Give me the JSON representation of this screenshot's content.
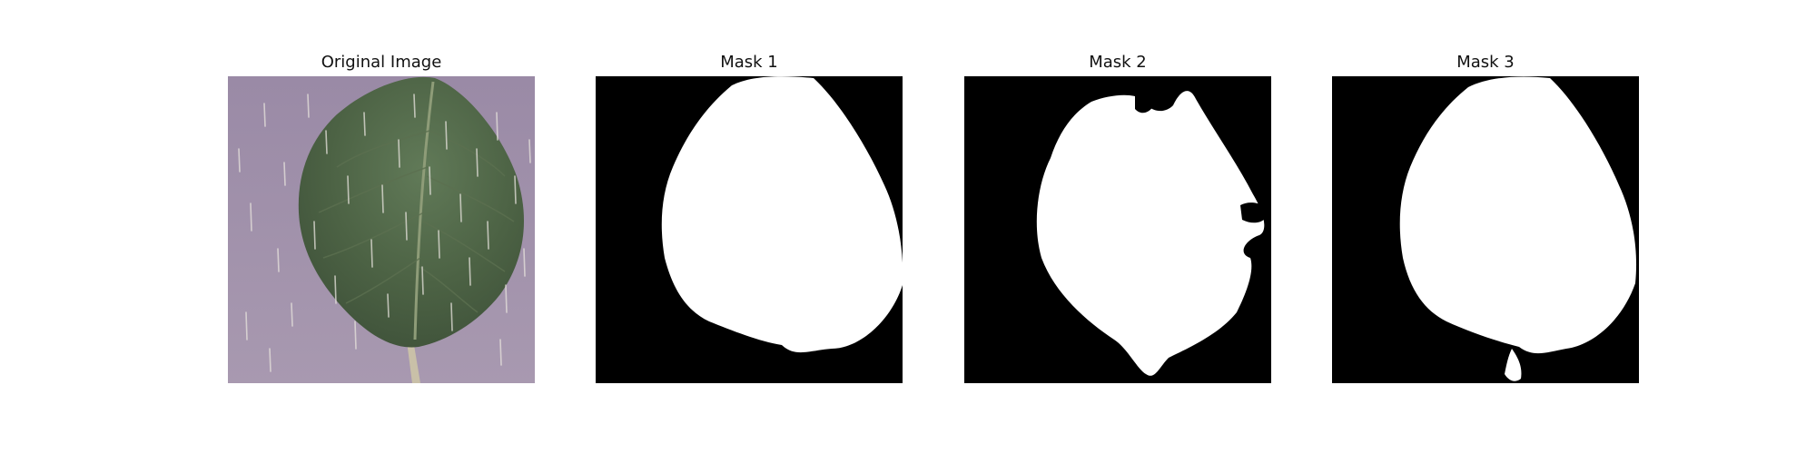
{
  "figure": {
    "panels": [
      {
        "title": "Original Image"
      },
      {
        "title": "Mask 1"
      },
      {
        "title": "Mask 2"
      },
      {
        "title": "Mask 3"
      }
    ]
  },
  "colors": {
    "background_purple": "#9c8fa8",
    "leaf_green": "#4f6446",
    "mask_black": "#000000",
    "mask_white": "#ffffff"
  },
  "icons": [
    "leaf-photo",
    "segmentation-mask"
  ]
}
